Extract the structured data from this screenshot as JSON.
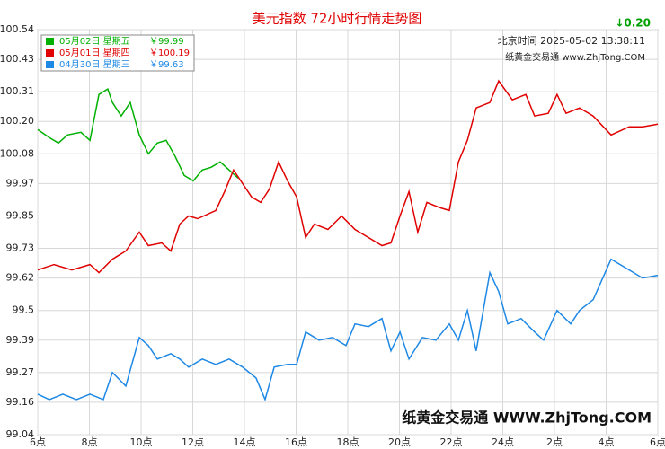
{
  "chart_data": {
    "type": "line",
    "title": "美元指数 72小时行情走势图",
    "change": "↓0.20",
    "info_time": "北京时间 2025-05-02 13:38:11",
    "info_site": "纸黄金交易通 www.ZhjTong.COM",
    "watermark": "纸黄金交易通 WWW.ZhjTong.COM",
    "xlim": [
      0,
      24
    ],
    "xticks": [
      {
        "value": 0,
        "label": "6点"
      },
      {
        "value": 2,
        "label": "8点"
      },
      {
        "value": 4,
        "label": "10点"
      },
      {
        "value": 6,
        "label": "12点"
      },
      {
        "value": 8,
        "label": "14点"
      },
      {
        "value": 10,
        "label": "16点"
      },
      {
        "value": 12,
        "label": "18点"
      },
      {
        "value": 14,
        "label": "20点"
      },
      {
        "value": 16,
        "label": "22点"
      },
      {
        "value": 18,
        "label": "24点"
      },
      {
        "value": 20,
        "label": "2点"
      },
      {
        "value": 22,
        "label": "4点"
      },
      {
        "value": 24,
        "label": "6点"
      }
    ],
    "ylim": [
      99.04,
      100.54
    ],
    "yticks": [
      99.04,
      99.16,
      99.27,
      99.39,
      99.5,
      {
        "value": 99.62,
        "label": "99.62"
      },
      99.73,
      99.85,
      99.97,
      100.08,
      {
        "value": 100.2,
        "label": "100.20"
      },
      100.31,
      100.43,
      100.54
    ],
    "grid": true,
    "legend": "upper left",
    "series": [
      {
        "name": "05月02日 星期五",
        "legend_value": "￥99.99",
        "color": "#00b000",
        "x": [
          0,
          0.45,
          0.8,
          1.15,
          1.67,
          2.02,
          2.37,
          2.71,
          2.89,
          3.23,
          3.58,
          3.93,
          4.28,
          4.63,
          4.97,
          5.32,
          5.67,
          6.02,
          6.37,
          6.71,
          7.06,
          7.41,
          7.76
        ],
        "values": [
          100.17,
          100.14,
          100.12,
          100.15,
          100.16,
          100.13,
          100.3,
          100.32,
          100.27,
          100.22,
          100.27,
          100.15,
          100.08,
          100.12,
          100.13,
          100.07,
          100.0,
          99.98,
          100.02,
          100.03,
          100.05,
          100.02,
          99.99
        ]
      },
      {
        "name": "05月01日 星期四",
        "legend_value": "￥100.19",
        "color": "#e00000",
        "x": [
          0,
          0.63,
          1.32,
          2.02,
          2.37,
          2.89,
          3.41,
          3.93,
          4.28,
          4.8,
          5.15,
          5.5,
          5.84,
          6.19,
          6.89,
          7.23,
          7.58,
          7.93,
          8.28,
          8.63,
          8.97,
          9.32,
          9.67,
          10.02,
          10.37,
          10.71,
          11.23,
          11.76,
          12.28,
          12.8,
          13.32,
          13.67,
          14.02,
          14.37,
          14.71,
          15.06,
          15.58,
          15.93,
          16.28,
          16.63,
          16.97,
          17.5,
          17.84,
          18.37,
          18.89,
          19.23,
          19.76,
          20.1,
          20.45,
          20.97,
          21.5,
          22.19,
          22.89,
          23.41,
          24
        ],
        "values": [
          99.65,
          99.67,
          99.65,
          99.67,
          99.64,
          99.69,
          99.72,
          99.79,
          99.74,
          99.75,
          99.72,
          99.82,
          99.85,
          99.84,
          99.87,
          99.94,
          100.02,
          99.97,
          99.92,
          99.9,
          99.95,
          100.05,
          99.98,
          99.92,
          99.77,
          99.82,
          99.8,
          99.85,
          99.8,
          99.77,
          99.74,
          99.75,
          99.85,
          99.94,
          99.79,
          99.9,
          99.88,
          99.87,
          100.05,
          100.13,
          100.25,
          100.27,
          100.35,
          100.28,
          100.3,
          100.22,
          100.23,
          100.3,
          100.23,
          100.25,
          100.22,
          100.15,
          100.18,
          100.18,
          100.19
        ]
      },
      {
        "name": "04月30日 星期三",
        "legend_value": "￥99.63",
        "color": "#1e88e5",
        "x": [
          0,
          0.45,
          0.97,
          1.5,
          2.02,
          2.54,
          2.89,
          3.41,
          3.93,
          4.28,
          4.63,
          5.15,
          5.5,
          5.84,
          6.37,
          6.89,
          7.41,
          7.93,
          8.45,
          8.8,
          9.15,
          9.67,
          10.02,
          10.37,
          10.89,
          11.41,
          11.93,
          12.28,
          12.8,
          13.32,
          13.67,
          14.02,
          14.37,
          14.89,
          15.41,
          15.93,
          16.28,
          16.63,
          16.97,
          17.5,
          17.84,
          18.19,
          18.71,
          19.23,
          19.58,
          20.1,
          20.63,
          20.97,
          21.5,
          22.19,
          22.89,
          23.41,
          24
        ],
        "values": [
          99.19,
          99.17,
          99.19,
          99.17,
          99.19,
          99.17,
          99.27,
          99.22,
          99.4,
          99.37,
          99.32,
          99.34,
          99.32,
          99.29,
          99.32,
          99.3,
          99.32,
          99.29,
          99.25,
          99.17,
          99.29,
          99.3,
          99.3,
          99.42,
          99.39,
          99.4,
          99.37,
          99.45,
          99.44,
          99.47,
          99.35,
          99.42,
          99.32,
          99.4,
          99.39,
          99.45,
          99.39,
          99.5,
          99.35,
          99.64,
          99.57,
          99.45,
          99.47,
          99.42,
          99.39,
          99.5,
          99.45,
          99.5,
          99.54,
          99.69,
          99.65,
          99.62,
          99.63
        ]
      }
    ]
  }
}
